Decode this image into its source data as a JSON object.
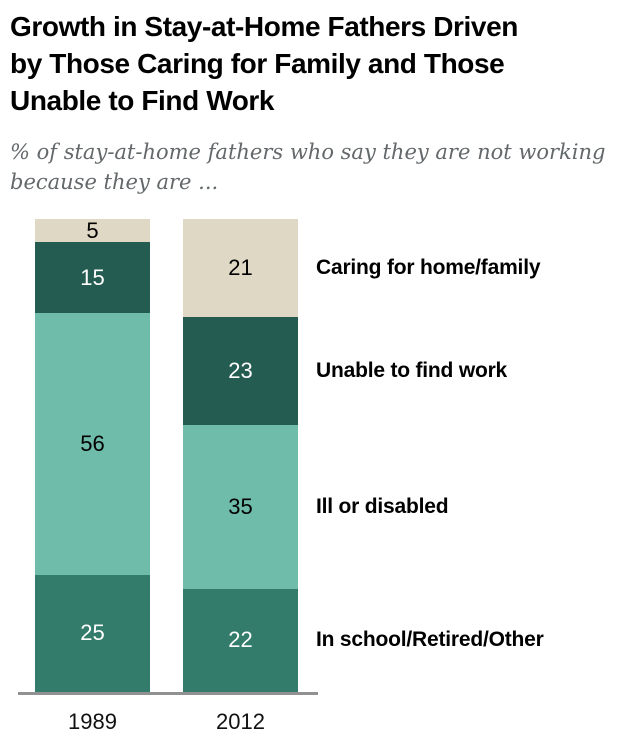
{
  "header": {
    "title_lines": [
      "Growth in Stay-at-Home Fathers Driven",
      "by Those Caring for Family and Those",
      "Unable to Find Work"
    ],
    "subtitle_lines": [
      "% of stay-at-home fathers who say they are not working",
      "because they are ..."
    ]
  },
  "chart_data": {
    "type": "bar",
    "stacked": true,
    "stack_order": "top-to-bottom",
    "title": "Growth in Stay-at-Home Fathers Driven by Those Caring for Family and Those Unable to Find Work",
    "subtitle": "% of stay-at-home fathers who say they are not working because they are ...",
    "categories": [
      "1989",
      "2012"
    ],
    "series": [
      {
        "name": "Caring for home/family",
        "values": [
          5,
          21
        ],
        "color": "#ded8c4",
        "label_color": "#000000"
      },
      {
        "name": "Unable to find work",
        "values": [
          15,
          23
        ],
        "color": "#255c51",
        "label_color": "#ffffff"
      },
      {
        "name": "Ill or disabled",
        "values": [
          56,
          35
        ],
        "color": "#6fbcab",
        "label_color": "#000000"
      },
      {
        "name": "In school/Retired/Other",
        "values": [
          25,
          22
        ],
        "color": "#337b6a",
        "label_color": "#ffffff"
      }
    ],
    "value_labels": "inside",
    "legend_position": "right",
    "ylim": [
      0,
      101
    ],
    "grid": false,
    "baseline_color": "#919191"
  }
}
